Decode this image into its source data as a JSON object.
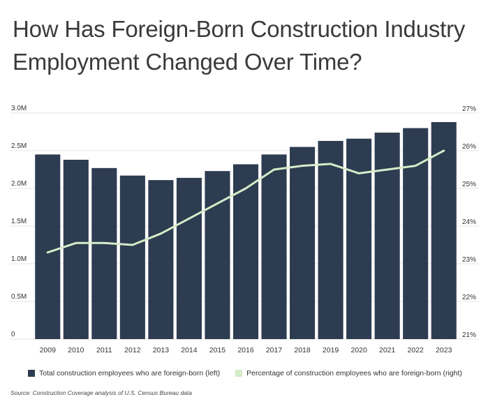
{
  "title_lines": [
    "How Has Foreign-Born Construction Industry",
    "Employment Changed Over Time?"
  ],
  "colors": {
    "bar": "#2d3c50",
    "line": "#d5ecc9",
    "grid": "#e6e6e6",
    "axis_text": "#333333"
  },
  "chart_data": {
    "type": "bar",
    "categories": [
      "2009",
      "2010",
      "2011",
      "2012",
      "2013",
      "2014",
      "2015",
      "2016",
      "2017",
      "2018",
      "2019",
      "2020",
      "2021",
      "2022",
      "2023"
    ],
    "series": [
      {
        "name": "Total construction employees who are foreign-born (left)",
        "type": "bar",
        "axis": "left",
        "values": [
          2450000,
          2380000,
          2270000,
          2170000,
          2110000,
          2140000,
          2230000,
          2320000,
          2450000,
          2550000,
          2630000,
          2660000,
          2740000,
          2800000,
          2880000
        ]
      },
      {
        "name": "Percentage of construction employees who are foreign-born (right)",
        "type": "line",
        "axis": "right",
        "values": [
          23.3,
          23.55,
          23.55,
          23.5,
          23.8,
          24.2,
          24.6,
          25.0,
          25.5,
          25.6,
          25.65,
          25.4,
          25.5,
          25.6,
          26.0
        ]
      }
    ],
    "y_left": {
      "min": 0,
      "max": 3000000,
      "ticks": [
        0,
        500000,
        1000000,
        1500000,
        2000000,
        2500000,
        3000000
      ],
      "tick_labels": [
        "0",
        "0.5M",
        "1.0M",
        "1.5M",
        "2.0M",
        "2.5M",
        "3.0M"
      ]
    },
    "y_right": {
      "min": 21,
      "max": 27,
      "ticks": [
        21,
        22,
        23,
        24,
        25,
        26,
        27
      ],
      "tick_labels": [
        "21%",
        "22%",
        "23%",
        "24%",
        "25%",
        "26%",
        "27%"
      ]
    },
    "grid": true,
    "legend_position": "bottom"
  },
  "source": "Source: Construction Coverage analysis of U.S. Census Bureau data"
}
